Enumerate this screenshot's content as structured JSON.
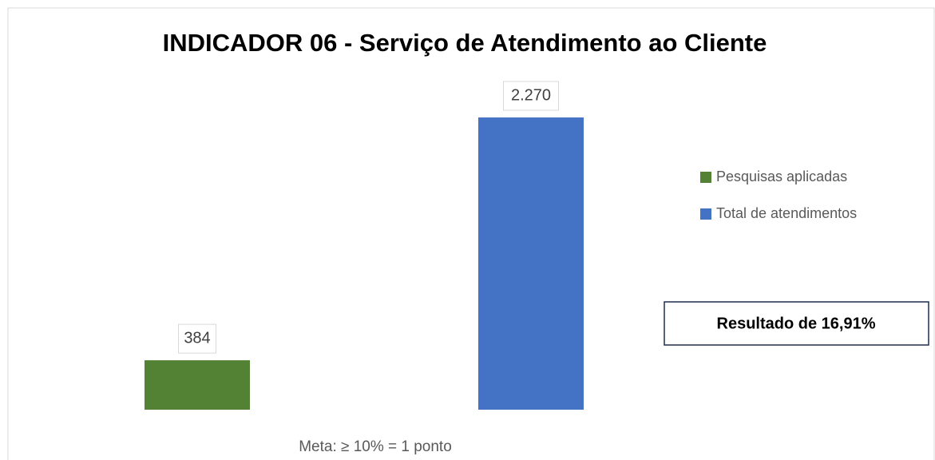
{
  "chart_data": {
    "type": "bar",
    "title": "INDICADOR 06 - Serviço de Atendimento ao Cliente",
    "categories": [
      null
    ],
    "series": [
      {
        "name": "Pesquisas aplicadas",
        "color": "#548235",
        "values": [
          384
        ],
        "value_labels": [
          "384"
        ]
      },
      {
        "name": "Total de atendimentos",
        "color": "#4472c4",
        "values": [
          2270
        ],
        "value_labels": [
          "2.270"
        ]
      }
    ],
    "ylim": [
      0,
      2500
    ],
    "legend": "right",
    "annotations": [
      "Resultado de 16,91%",
      "Meta: ≥ 10% = 1 ponto"
    ]
  }
}
